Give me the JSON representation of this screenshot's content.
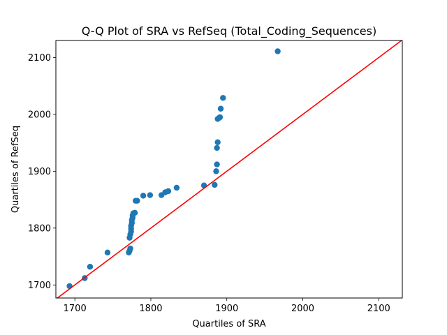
{
  "chart_data": {
    "type": "scatter",
    "title": "Q-Q Plot of SRA vs RefSeq (Total_Coding_Sequences)",
    "xlabel": "Quartiles of SRA",
    "ylabel": "Quartiles of RefSeq",
    "xlim": [
      1675,
      2131
    ],
    "ylim": [
      1677,
      2130
    ],
    "xticks": [
      1700,
      1800,
      1900,
      2000,
      2100
    ],
    "yticks": [
      1700,
      1800,
      1900,
      2000,
      2100
    ],
    "grid": false,
    "marker_color": "#1f77b4",
    "reference_line": {
      "color": "#ff0000",
      "slope": 1,
      "intercept": 0
    },
    "points": [
      [
        1693,
        1698
      ],
      [
        1713,
        1712
      ],
      [
        1720,
        1732
      ],
      [
        1743,
        1757
      ],
      [
        1771,
        1757
      ],
      [
        1772,
        1760
      ],
      [
        1773,
        1764
      ],
      [
        1772,
        1783
      ],
      [
        1773,
        1789
      ],
      [
        1774,
        1794
      ],
      [
        1774,
        1799
      ],
      [
        1774,
        1804
      ],
      [
        1775,
        1809
      ],
      [
        1775,
        1814
      ],
      [
        1776,
        1818
      ],
      [
        1776,
        1822
      ],
      [
        1777,
        1826
      ],
      [
        1779,
        1827
      ],
      [
        1780,
        1848
      ],
      [
        1782,
        1848
      ],
      [
        1790,
        1857
      ],
      [
        1799,
        1858
      ],
      [
        1814,
        1858
      ],
      [
        1819,
        1863
      ],
      [
        1823,
        1865
      ],
      [
        1834,
        1871
      ],
      [
        1870,
        1875
      ],
      [
        1884,
        1876
      ],
      [
        1886,
        1900
      ],
      [
        1887,
        1912
      ],
      [
        1887,
        1941
      ],
      [
        1888,
        1951
      ],
      [
        1888,
        1992
      ],
      [
        1890,
        1994
      ],
      [
        1891,
        1995
      ],
      [
        1892,
        2010
      ],
      [
        1895,
        2029
      ],
      [
        1967,
        2111
      ]
    ]
  }
}
